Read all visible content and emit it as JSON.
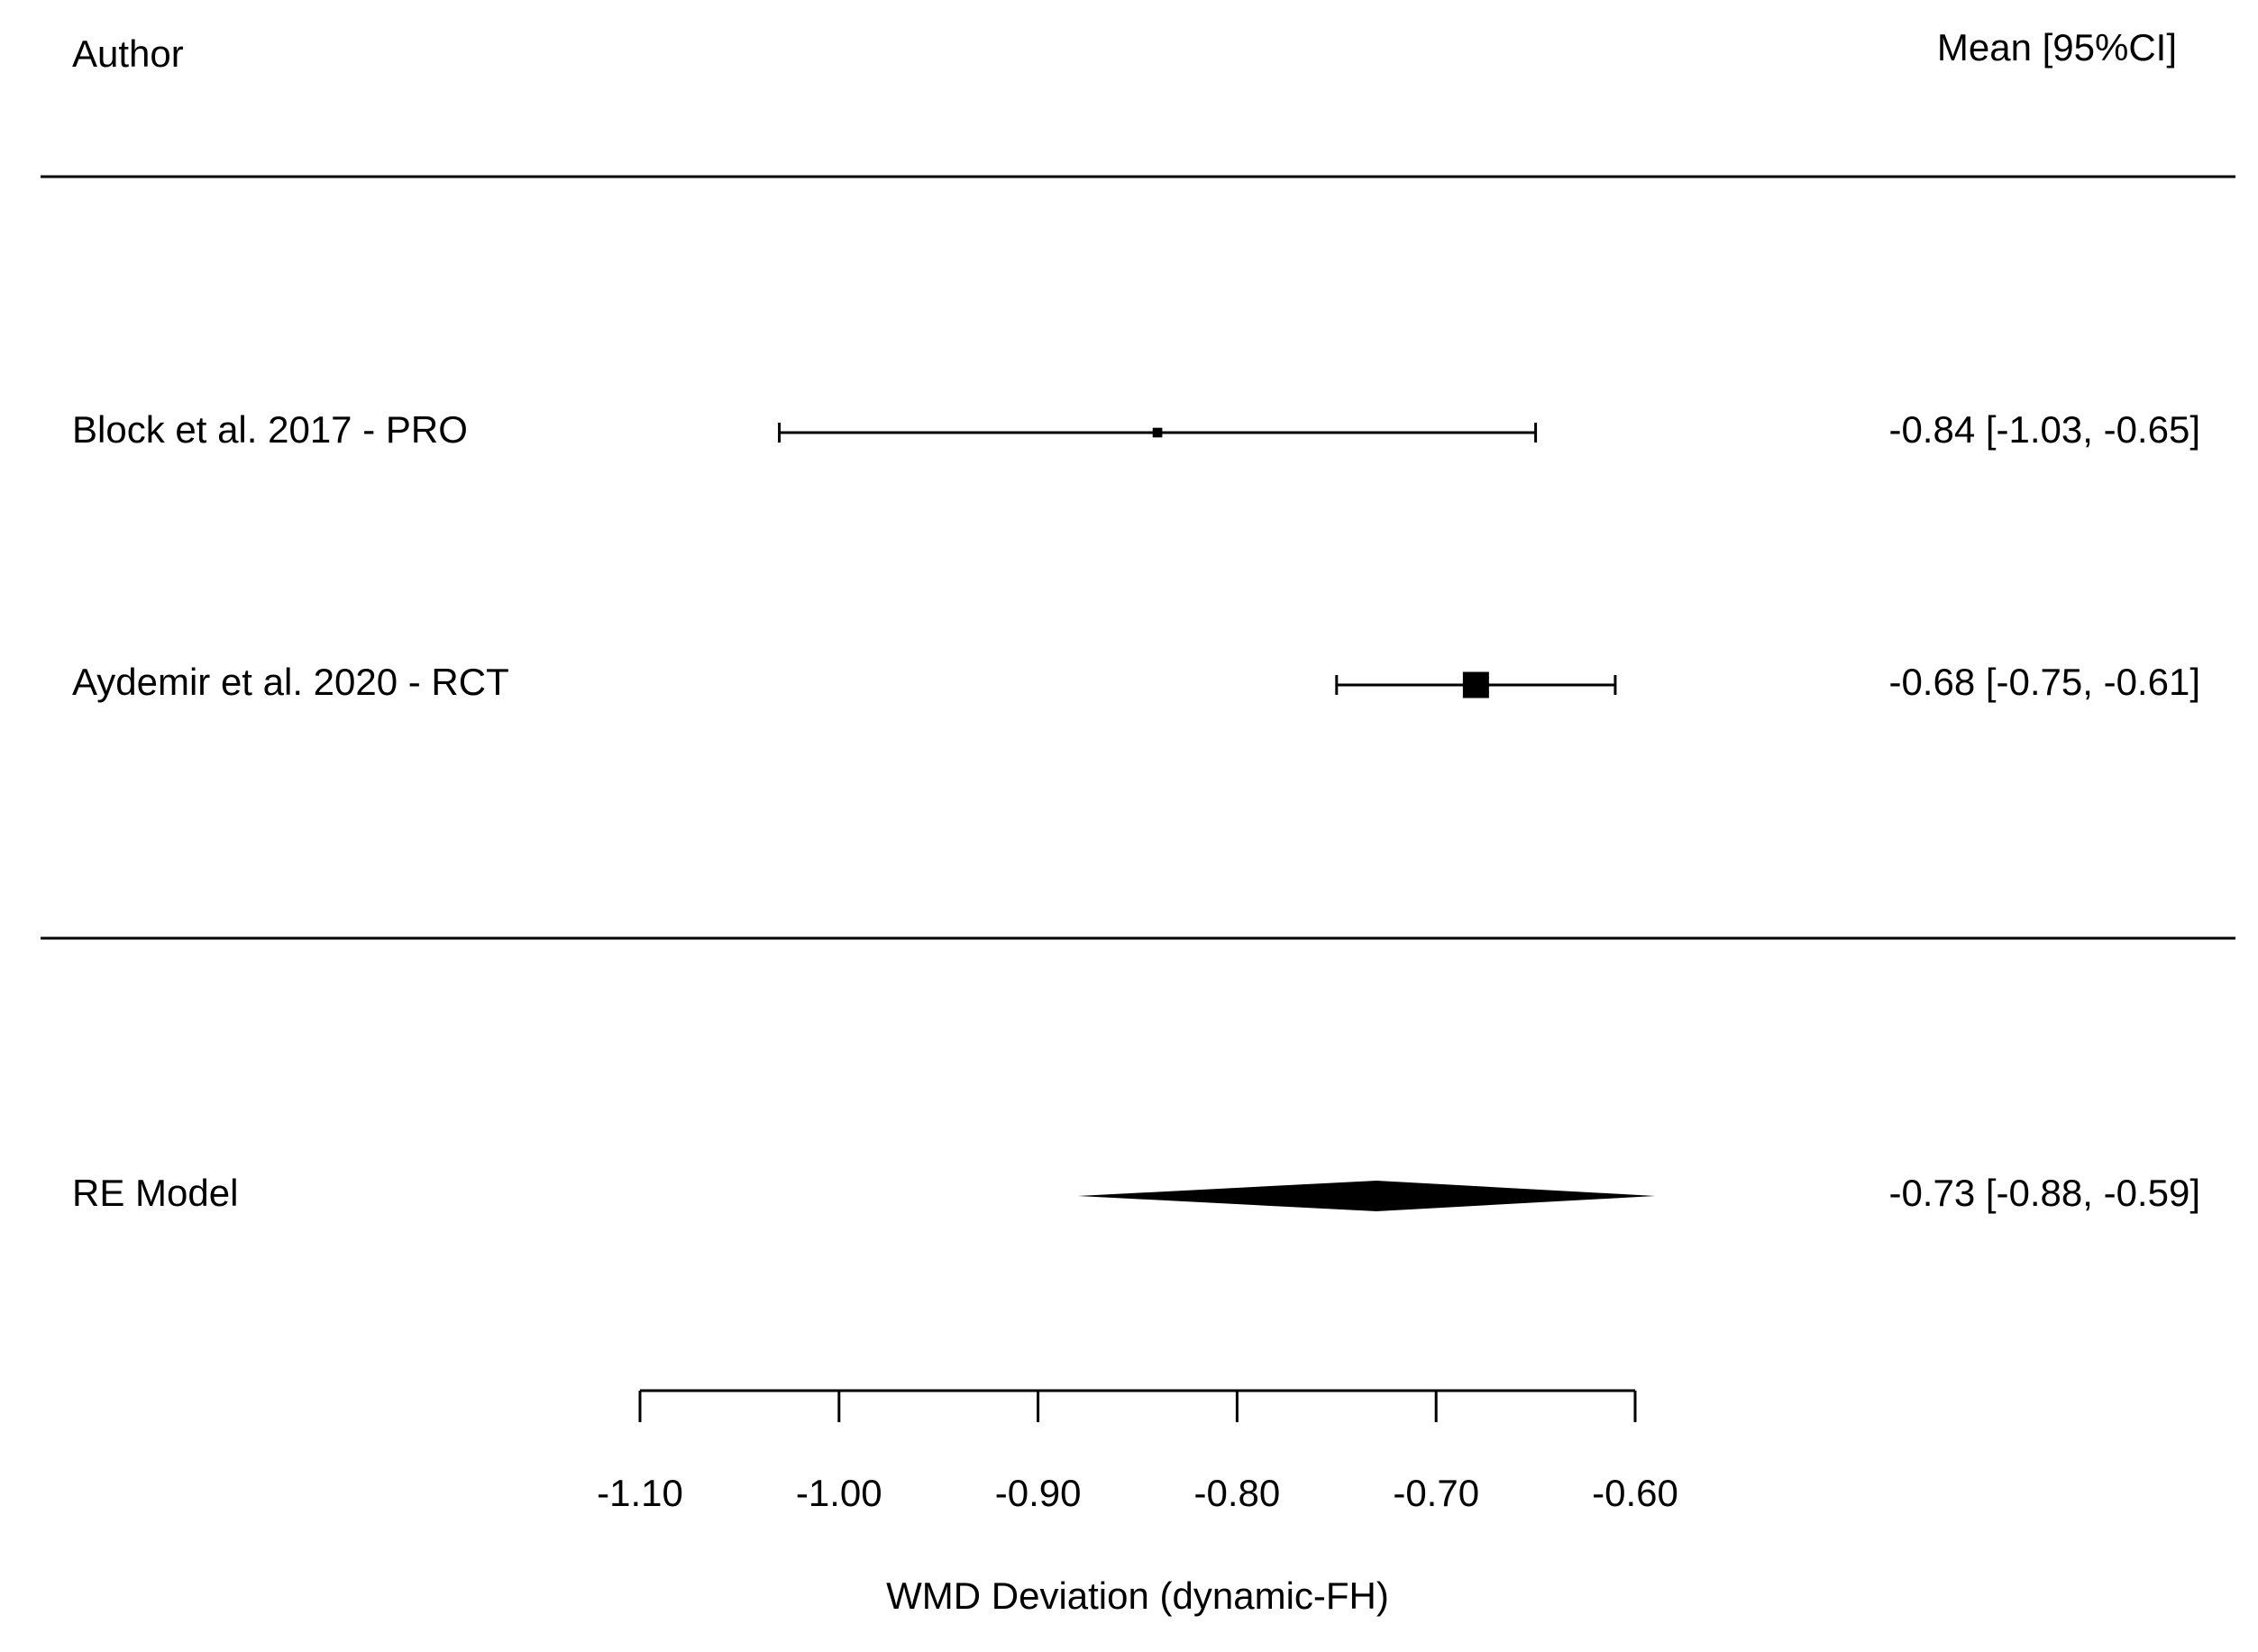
{
  "chart_data": {
    "type": "forest",
    "headers": {
      "author": "Author",
      "estimate": "Mean [95%CI]"
    },
    "studies": [
      {
        "label": "Block et al. 2017 - PRO",
        "mean": -0.84,
        "lower": -1.03,
        "upper": -0.65,
        "value_label": "-0.84 [-1.03, -0.65]"
      },
      {
        "label": "Aydemir et al. 2020 - RCT",
        "mean": -0.68,
        "lower": -0.75,
        "upper": -0.61,
        "value_label": "-0.68 [-0.75, -0.61]"
      }
    ],
    "summary": {
      "label": "RE Model",
      "mean": -0.73,
      "lower": -0.88,
      "upper": -0.59,
      "value_label": "-0.73 [-0.88, -0.59]"
    },
    "xlim": [
      -1.1,
      -0.6
    ],
    "xticks": [
      {
        "value": -1.1,
        "label": "-1.10"
      },
      {
        "value": -1.0,
        "label": "-1.00"
      },
      {
        "value": -0.9,
        "label": "-0.90"
      },
      {
        "value": -0.8,
        "label": "-0.80"
      },
      {
        "value": -0.7,
        "label": "-0.70"
      },
      {
        "value": -0.6,
        "label": "-0.60"
      }
    ],
    "xlabel": "WMD Deviation (dynamic-FH)",
    "color": "#000000"
  }
}
